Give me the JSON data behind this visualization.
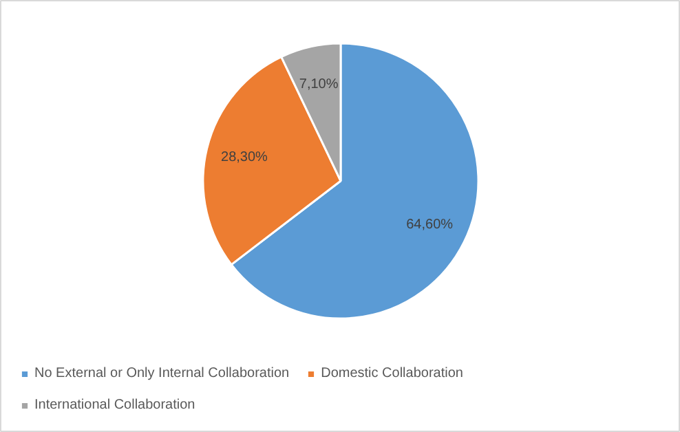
{
  "chart_data": {
    "type": "pie",
    "categories": [
      "No External or Only Internal Collaboration",
      "Domestic Collaboration",
      "International Collaboration"
    ],
    "values": [
      64.6,
      28.3,
      7.1
    ],
    "value_labels": [
      "64,60%",
      "28,30%",
      "7,10%"
    ],
    "colors": [
      "#5b9bd5",
      "#ed7d31",
      "#a5a5a5"
    ],
    "legend": "bottom"
  }
}
